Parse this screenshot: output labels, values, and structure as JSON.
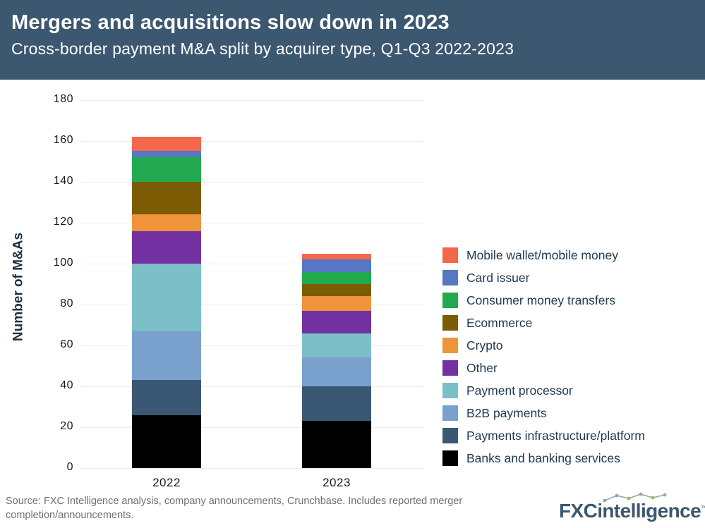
{
  "header": {
    "title": "Mergers and acquisitions slow down in 2023",
    "subtitle": "Cross-border payment M&A split by acquirer type, Q1-Q3 2022-2023"
  },
  "chart_data": {
    "type": "bar",
    "stacked": true,
    "title": "Mergers and acquisitions slow down in 2023",
    "subtitle": "Cross-border payment M&A split by acquirer type, Q1-Q3 2022-2023",
    "xlabel": "",
    "ylabel": "Number of M&As",
    "categories": [
      "2022",
      "2023"
    ],
    "series": [
      {
        "name": "Mobile wallet/mobile money",
        "color": "#F4674B",
        "values": [
          7,
          3
        ]
      },
      {
        "name": "Card issuer",
        "color": "#5677C3",
        "values": [
          3,
          6
        ]
      },
      {
        "name": "Consumer money transfers",
        "color": "#22A94F",
        "values": [
          12,
          6
        ]
      },
      {
        "name": "Ecommerce",
        "color": "#7B5C04",
        "values": [
          16,
          6
        ]
      },
      {
        "name": "Crypto",
        "color": "#F0943B",
        "values": [
          8,
          7
        ]
      },
      {
        "name": "Other",
        "color": "#7331A1",
        "values": [
          16,
          11
        ]
      },
      {
        "name": "Payment processor",
        "color": "#7CBFC9",
        "values": [
          33,
          12
        ]
      },
      {
        "name": "B2B payments",
        "color": "#7AA0CE",
        "values": [
          24,
          14
        ]
      },
      {
        "name": "Payments infrastructure/platform",
        "color": "#3A5874",
        "values": [
          17,
          17
        ]
      },
      {
        "name": "Banks and banking services",
        "color": "#000000",
        "values": [
          26,
          23
        ]
      }
    ],
    "series_order_note": "listed top-of-stack first; legend shown in same order",
    "totals": [
      162,
      105
    ],
    "ylim": [
      0,
      180
    ],
    "ytick_step": 20,
    "yticks": [
      0,
      20,
      40,
      60,
      80,
      100,
      120,
      140,
      160,
      180
    ],
    "grid": true,
    "legend_position": "right"
  },
  "footer": {
    "source": "Source: FXC Intelligence analysis, company announcements, Crunchbase. Includes reported merger completion/announcements.",
    "logo_text": "FXCintelligence",
    "logo_tm": "TM"
  },
  "colors": {
    "header_background": "#3B5870",
    "header_text": "#FFFFFF",
    "gridline": "#ECECEC",
    "axis_text": "#1A1A1A",
    "legend_text": "#203A52",
    "source_text": "#6F6F6F",
    "logo_text": "#3B5870",
    "logo_accent_green": "#8CC63F",
    "logo_sparkline_gray": "#9AA4AB"
  }
}
